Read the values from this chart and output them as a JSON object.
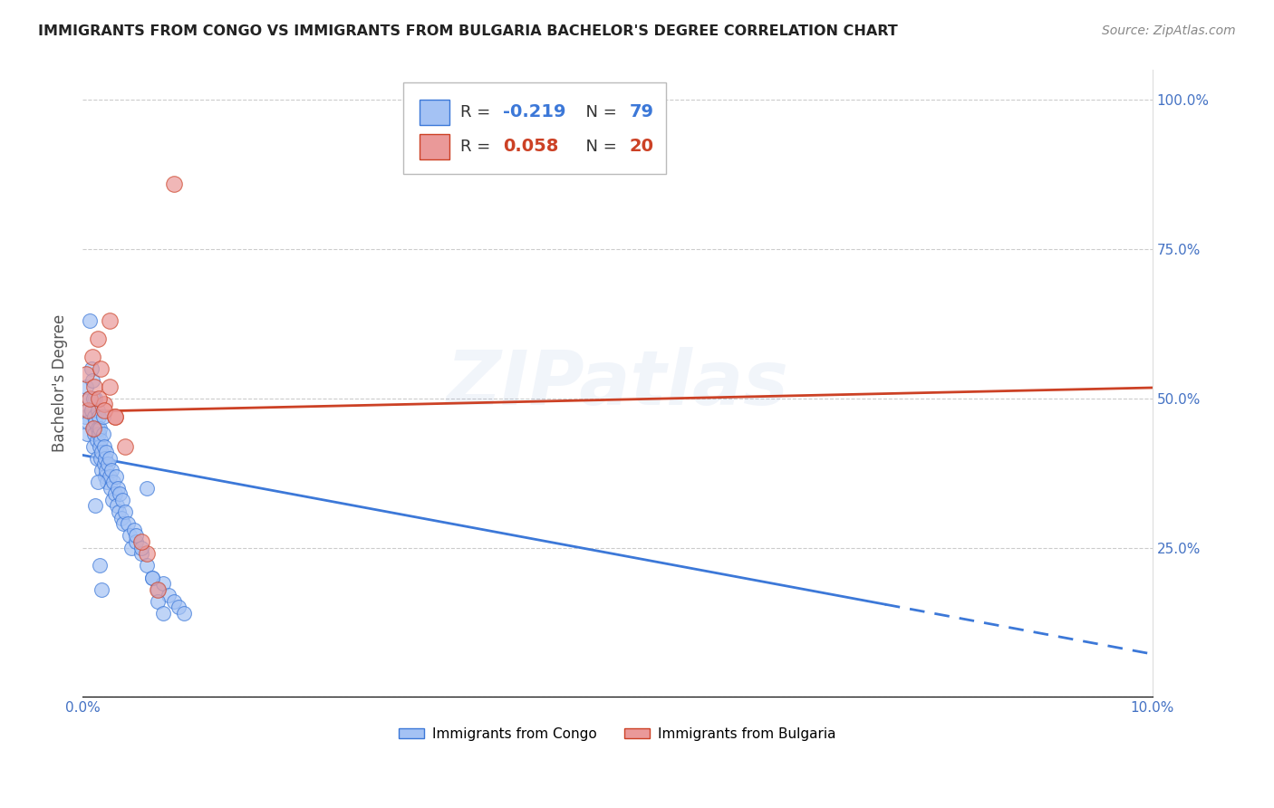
{
  "title": "IMMIGRANTS FROM CONGO VS IMMIGRANTS FROM BULGARIA BACHELOR'S DEGREE CORRELATION CHART",
  "source": "Source: ZipAtlas.com",
  "ylabel": "Bachelor's Degree",
  "xlim": [
    0.0,
    0.1
  ],
  "ylim": [
    0.0,
    1.05
  ],
  "congo_R": -0.219,
  "congo_N": 79,
  "bulgaria_R": 0.058,
  "bulgaria_N": 20,
  "congo_color": "#a4c2f4",
  "bulgaria_color": "#ea9999",
  "congo_line_color": "#3c78d8",
  "bulgaria_line_color": "#cc4125",
  "watermark": "ZIPatlas",
  "congo_x": [
    0.0002,
    0.0003,
    0.0004,
    0.0005,
    0.0005,
    0.0006,
    0.0007,
    0.0008,
    0.0008,
    0.0009,
    0.001,
    0.001,
    0.0011,
    0.0011,
    0.0012,
    0.0012,
    0.0013,
    0.0013,
    0.0014,
    0.0014,
    0.0015,
    0.0015,
    0.0016,
    0.0016,
    0.0017,
    0.0017,
    0.0018,
    0.0018,
    0.0019,
    0.0019,
    0.002,
    0.002,
    0.0021,
    0.0021,
    0.0022,
    0.0022,
    0.0023,
    0.0024,
    0.0025,
    0.0025,
    0.0026,
    0.0027,
    0.0028,
    0.0029,
    0.003,
    0.0031,
    0.0032,
    0.0033,
    0.0034,
    0.0035,
    0.0036,
    0.0037,
    0.0038,
    0.004,
    0.0042,
    0.0044,
    0.0046,
    0.0048,
    0.005,
    0.0055,
    0.006,
    0.0065,
    0.007,
    0.0075,
    0.008,
    0.0085,
    0.009,
    0.0095,
    0.001,
    0.0012,
    0.0014,
    0.0016,
    0.0018,
    0.005,
    0.0055,
    0.006,
    0.0065,
    0.007,
    0.0075
  ],
  "congo_y": [
    0.47,
    0.52,
    0.44,
    0.48,
    0.46,
    0.5,
    0.63,
    0.55,
    0.48,
    0.53,
    0.45,
    0.42,
    0.44,
    0.47,
    0.5,
    0.46,
    0.43,
    0.4,
    0.45,
    0.48,
    0.44,
    0.47,
    0.42,
    0.45,
    0.4,
    0.43,
    0.38,
    0.41,
    0.44,
    0.47,
    0.39,
    0.42,
    0.37,
    0.4,
    0.38,
    0.41,
    0.36,
    0.39,
    0.37,
    0.4,
    0.35,
    0.38,
    0.33,
    0.36,
    0.34,
    0.37,
    0.32,
    0.35,
    0.31,
    0.34,
    0.3,
    0.33,
    0.29,
    0.31,
    0.29,
    0.27,
    0.25,
    0.28,
    0.26,
    0.24,
    0.22,
    0.2,
    0.18,
    0.19,
    0.17,
    0.16,
    0.15,
    0.14,
    0.5,
    0.32,
    0.36,
    0.22,
    0.18,
    0.27,
    0.25,
    0.35,
    0.2,
    0.16,
    0.14
  ],
  "bulgaria_x": [
    0.0003,
    0.0005,
    0.0007,
    0.0009,
    0.0011,
    0.0014,
    0.0017,
    0.002,
    0.0025,
    0.003,
    0.001,
    0.0015,
    0.002,
    0.0025,
    0.003,
    0.004,
    0.006,
    0.0085,
    0.0055,
    0.007
  ],
  "bulgaria_y": [
    0.54,
    0.48,
    0.5,
    0.57,
    0.52,
    0.6,
    0.55,
    0.49,
    0.52,
    0.47,
    0.45,
    0.5,
    0.48,
    0.63,
    0.47,
    0.42,
    0.24,
    0.86,
    0.26,
    0.18
  ],
  "congo_trend_x0": 0.0,
  "congo_trend_y0": 0.405,
  "congo_trend_x1": 0.075,
  "congo_trend_y1": 0.155,
  "bulgaria_trend_x0": 0.0,
  "bulgaria_trend_y0": 0.478,
  "bulgaria_trend_x1": 0.1,
  "bulgaria_trend_y1": 0.518
}
